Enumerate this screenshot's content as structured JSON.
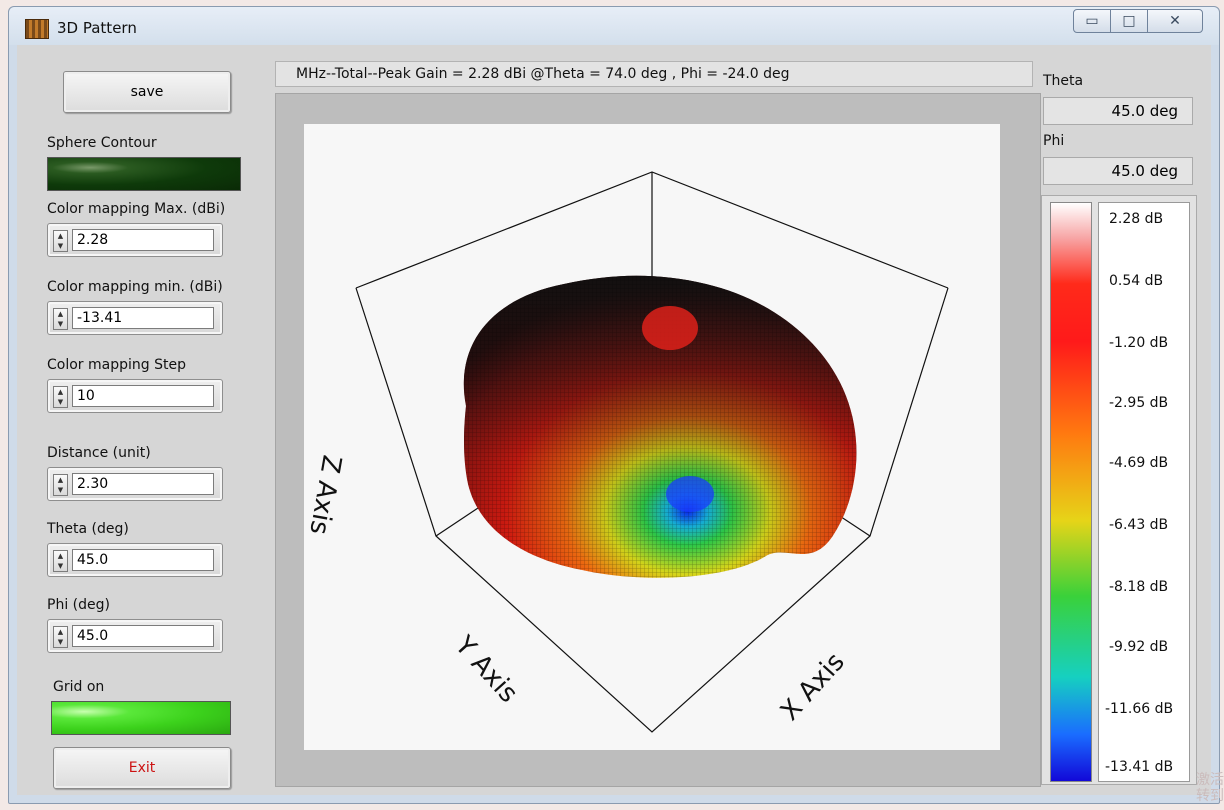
{
  "window": {
    "title": "3D Pattern",
    "icon": "app-icon"
  },
  "left": {
    "save_label": "save",
    "sphere_contour_label": "Sphere Contour",
    "color_max_label": "Color mapping Max. (dBi)",
    "color_max_value": "2.28",
    "color_min_label": "Color mapping min. (dBi)",
    "color_min_value": "-13.41",
    "color_step_label": "Color mapping Step",
    "color_step_value": "10",
    "distance_label": "Distance (unit)",
    "distance_value": "2.30",
    "theta_label": "Theta (deg)",
    "theta_value": "45.0",
    "phi_label": "Phi (deg)",
    "phi_value": "45.0",
    "grid_label": "Grid on",
    "exit_label": "Exit",
    "colors": {
      "sphere_led": "#0e3a0a",
      "grid_led": "#3cd21c",
      "exit_text": "#cc1111"
    }
  },
  "status_text": "MHz--Total--Peak Gain = 2.28 dBi @Theta = 74.0 deg , Phi = -24.0 deg",
  "plot": {
    "z_axis": "Z Axis",
    "y_axis": "Y Axis",
    "x_axis": "X Axis"
  },
  "right": {
    "theta_label": "Theta",
    "theta_value": "45.0 deg",
    "phi_label": "Phi",
    "phi_value": "45.0 deg",
    "ticks": [
      "2.28 dB",
      "0.54 dB",
      "-1.20 dB",
      "-2.95 dB",
      "-4.69 dB",
      "-6.43 dB",
      "-8.18 dB",
      "-9.92 dB",
      "-11.66 dB",
      "-13.41 dB"
    ]
  },
  "watermark": [
    "激活",
    "转到"
  ]
}
